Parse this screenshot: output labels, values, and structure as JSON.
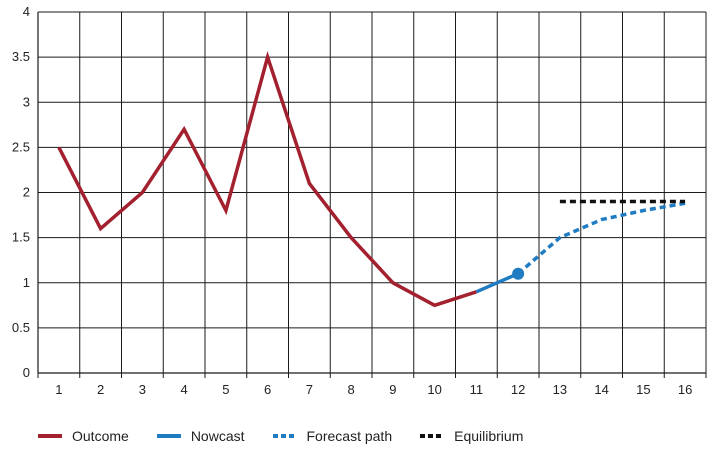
{
  "chart_data": {
    "type": "line",
    "x": [
      1,
      2,
      3,
      4,
      5,
      6,
      7,
      8,
      9,
      10,
      11,
      12,
      13,
      14,
      15,
      16
    ],
    "xlim": [
      1,
      16
    ],
    "ylim": [
      0,
      4
    ],
    "yticks": [
      "0",
      "0.5",
      "1",
      "1.5",
      "2",
      "2.5",
      "3",
      "3.5",
      "4"
    ],
    "xticks": [
      "1",
      "2",
      "3",
      "4",
      "5",
      "6",
      "7",
      "8",
      "9",
      "10",
      "11",
      "12",
      "13",
      "14",
      "15",
      "16"
    ],
    "grid": true,
    "legend_position": "bottom",
    "series": [
      {
        "name": "Outcome",
        "color": "#a3202f",
        "style": "solid",
        "points": [
          [
            1,
            2.5
          ],
          [
            2,
            1.6
          ],
          [
            3,
            2.0
          ],
          [
            4,
            2.7
          ],
          [
            5,
            1.8
          ],
          [
            6,
            3.5
          ],
          [
            7,
            2.1
          ],
          [
            8,
            1.5
          ],
          [
            9,
            1.0
          ],
          [
            10,
            0.75
          ],
          [
            11,
            0.9
          ]
        ]
      },
      {
        "name": "Nowcast",
        "color": "#1f7bc2",
        "style": "solid",
        "points": [
          [
            11,
            0.9
          ],
          [
            12,
            1.1
          ]
        ],
        "end_marker": true
      },
      {
        "name": "Forecast path",
        "color": "#1f7bc2",
        "style": "dashed",
        "points": [
          [
            12,
            1.1
          ],
          [
            13,
            1.5
          ],
          [
            14,
            1.7
          ],
          [
            15,
            1.8
          ],
          [
            16,
            1.88
          ]
        ]
      },
      {
        "name": "Equilibrium",
        "color": "#111111",
        "style": "dashed",
        "points": [
          [
            13,
            1.9
          ],
          [
            16,
            1.9
          ]
        ]
      }
    ]
  }
}
